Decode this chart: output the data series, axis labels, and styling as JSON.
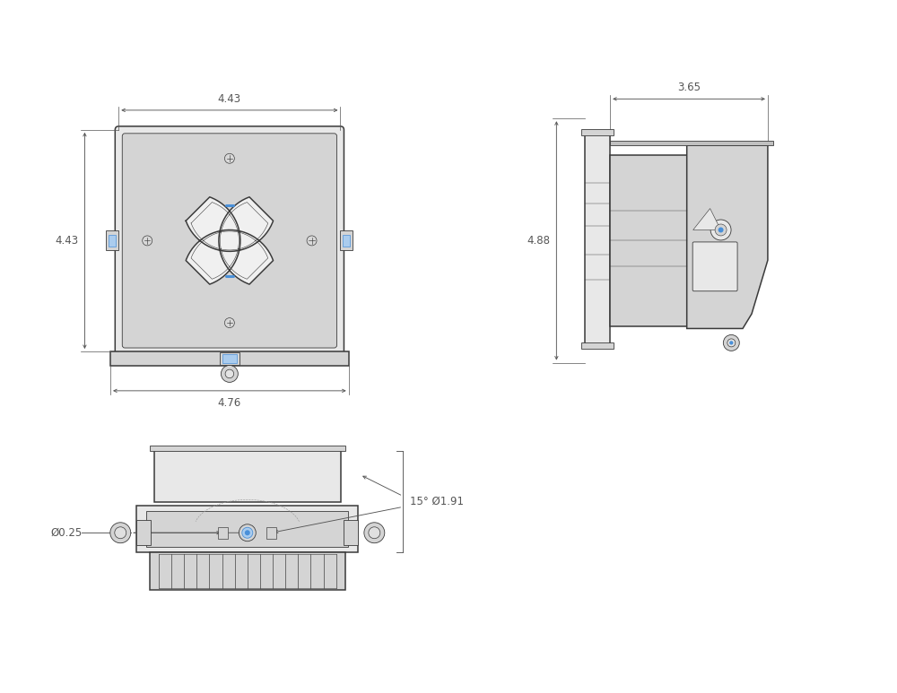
{
  "bg_color": "#ffffff",
  "line_color": "#3a3a3a",
  "dim_color": "#555555",
  "blue_color": "#4a90d9",
  "fill_light": "#e8e8e8",
  "fill_mid": "#d4d4d4",
  "fill_dark": "#c0c0c0",
  "dim_4_43_top": "4.43",
  "dim_4_43_side": "4.43",
  "dim_4_76": "4.76",
  "dim_3_65": "3.65",
  "dim_4_88": "4.88",
  "dim_phi_025": "Ø0.25",
  "dim_15_phi_191": "15° Ø1.91"
}
